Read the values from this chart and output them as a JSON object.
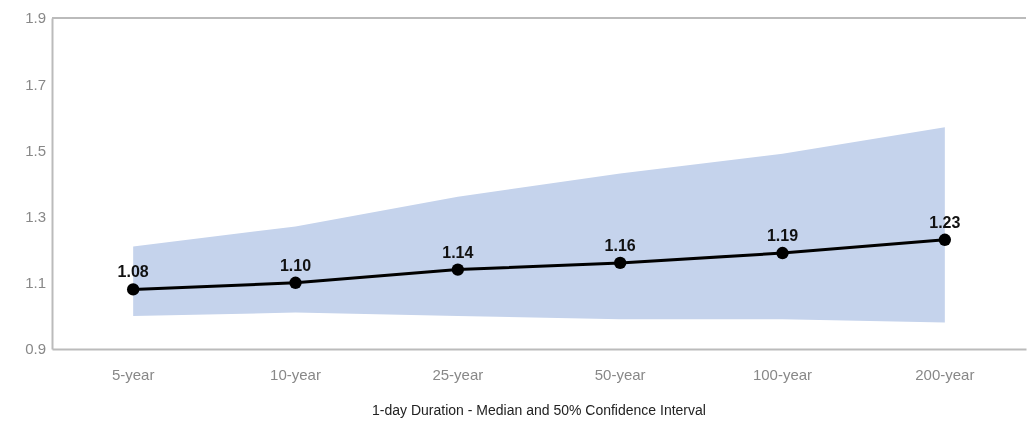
{
  "chart_data": {
    "type": "line",
    "xlabel": "1-day Duration - Median and 50% Confidence Interval",
    "categories": [
      "5-year",
      "10-year",
      "25-year",
      "50-year",
      "100-year",
      "200-year"
    ],
    "series": [
      {
        "color": "#000000",
        "values": [
          1.08,
          1.1,
          1.14,
          1.16,
          1.19,
          1.23
        ],
        "value_labels": [
          "1.08",
          "1.10",
          "1.14",
          "1.16",
          "1.19",
          "1.23"
        ],
        "lower": [
          1.0,
          1.01,
          1.0,
          0.99,
          0.99,
          0.98
        ],
        "upper": [
          1.21,
          1.27,
          1.36,
          1.43,
          1.49,
          1.57
        ]
      }
    ],
    "ylim": [
      0.9,
      1.9
    ],
    "yticks": [
      0.9,
      1.1,
      1.3,
      1.5,
      1.7,
      1.9
    ],
    "marker": "circle"
  }
}
